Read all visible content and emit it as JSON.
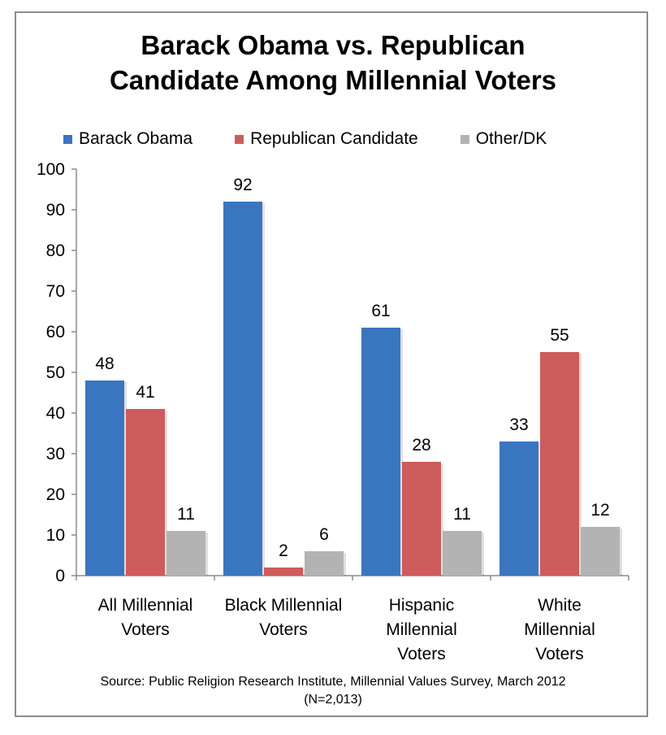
{
  "title_line1": "Barack Obama vs. Republican",
  "title_line2": "Candidate Among Millennial Voters",
  "source_line1": "Source: Public Religion Research Institute, Millennial Values Survey, March 2012",
  "source_line2": "(N=2,013)",
  "chart_data": {
    "type": "bar",
    "title": "Barack Obama vs. Republican Candidate Among Millennial Voters",
    "categories": [
      [
        "All Millennial",
        "Voters"
      ],
      [
        "Black Millennial",
        "Voters"
      ],
      [
        "Hispanic",
        "Millennial",
        "Voters"
      ],
      [
        "White",
        "Millennial",
        "Voters"
      ]
    ],
    "series": [
      {
        "name": "Barack Obama",
        "color": "#3a75bf",
        "values": [
          48,
          92,
          61,
          33
        ]
      },
      {
        "name": "Republican Candidate",
        "color": "#cd5c5c",
        "values": [
          41,
          2,
          28,
          55
        ]
      },
      {
        "name": "Other/DK",
        "color": "#b3b3b3",
        "values": [
          11,
          6,
          11,
          12
        ]
      }
    ],
    "ylim": [
      0,
      100
    ],
    "yticks": [
      0,
      10,
      20,
      30,
      40,
      50,
      60,
      70,
      80,
      90,
      100
    ],
    "legend_position": "top",
    "grid": false,
    "xlabel": "",
    "ylabel": ""
  }
}
